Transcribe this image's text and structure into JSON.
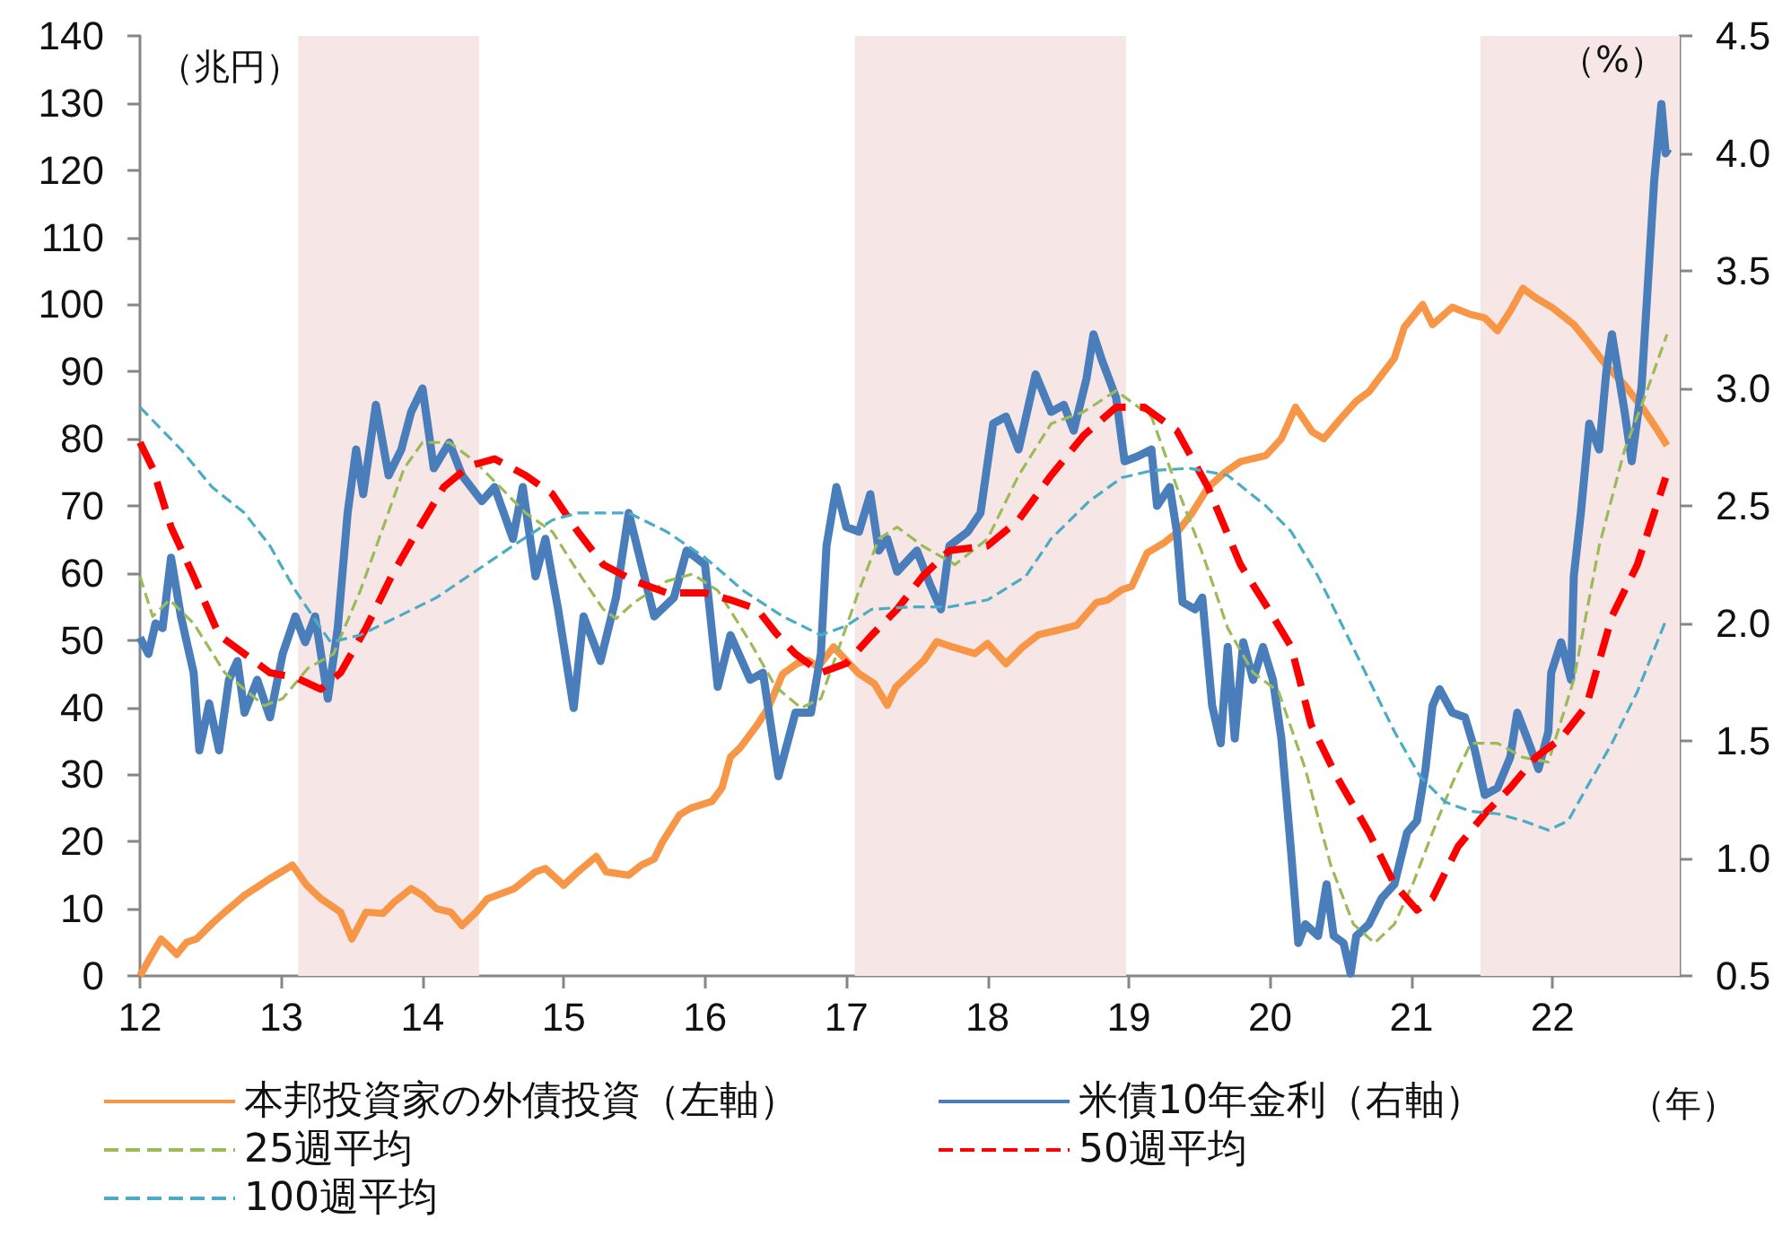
{
  "chart_data": {
    "type": "line",
    "xlabel": "（年）",
    "ylabel": "（兆円）",
    "y2label": "（%）",
    "xlim": [
      12,
      22.9
    ],
    "xticks": [
      12,
      13,
      14,
      15,
      16,
      17,
      18,
      19,
      20,
      21,
      22
    ],
    "ylim": [
      0,
      140
    ],
    "yticks": [
      0,
      10,
      20,
      30,
      40,
      50,
      60,
      70,
      80,
      90,
      100,
      110,
      120,
      130,
      140
    ],
    "y2lim": [
      0.5,
      4.5
    ],
    "y2ticks": [
      0.5,
      {
        "value": 1,
        "label": "1.0"
      },
      1.5,
      {
        "value": 2,
        "label": "2.0"
      },
      2.5,
      {
        "value": 3,
        "label": "3.0"
      },
      3.5,
      {
        "value": 4,
        "label": "4.0"
      },
      4.5
    ],
    "grid": false,
    "legend": "bottom",
    "marker": "none",
    "bands": [
      {
        "axis": "x",
        "from": 13.12,
        "to": 14.4,
        "color": "#f6e6e6"
      },
      {
        "axis": "x",
        "from": 17.06,
        "to": 18.98,
        "color": "#f6e6e6"
      },
      {
        "axis": "x",
        "from": 21.49,
        "to": 22.9,
        "color": "#f6e6e6"
      }
    ],
    "series": [
      {
        "name": "本邦投資家の外債投資（左軸）",
        "color": "#f79646",
        "line_style": "solid",
        "x": [
          12.0,
          12.08,
          12.15,
          12.2,
          12.26,
          12.33,
          12.4,
          12.51,
          12.6,
          12.74,
          12.85,
          12.92,
          13.0,
          13.08,
          13.18,
          13.28,
          13.42,
          13.5,
          13.6,
          13.72,
          13.8,
          13.92,
          14.0,
          14.1,
          14.2,
          14.28,
          14.38,
          14.46,
          14.65,
          14.8,
          14.87,
          15.0,
          15.1,
          15.23,
          15.3,
          15.46,
          15.55,
          15.64,
          15.7,
          15.82,
          15.9,
          16.05,
          16.12,
          16.18,
          16.25,
          16.37,
          16.45,
          16.55,
          16.65,
          16.73,
          16.8,
          16.91,
          17.0,
          17.09,
          17.2,
          17.29,
          17.35,
          17.45,
          17.55,
          17.64,
          17.75,
          17.91,
          18.0,
          18.13,
          18.25,
          18.36,
          18.5,
          18.63,
          18.77,
          18.85,
          18.95,
          19.02,
          19.13,
          19.25,
          19.34,
          19.45,
          19.56,
          19.68,
          19.79,
          19.97,
          20.08,
          20.18,
          20.3,
          20.38,
          20.5,
          20.61,
          20.7,
          20.79,
          20.88,
          20.95,
          21.08,
          21.15,
          21.29,
          21.42,
          21.52,
          21.61,
          21.7,
          21.79,
          21.88,
          22.0,
          22.06,
          22.15,
          22.24,
          22.38,
          22.51,
          22.65,
          22.72,
          22.81
        ],
        "values": [
          0,
          3,
          5.5,
          4.5,
          3.2,
          5,
          5.5,
          7.8,
          9.5,
          12,
          13.5,
          14.5,
          15.5,
          16.5,
          13.5,
          11.5,
          9.5,
          5.5,
          9.5,
          9.3,
          11,
          13,
          12,
          10,
          9.5,
          7.5,
          9.5,
          11.5,
          13,
          15.5,
          16,
          13.5,
          15.5,
          17.8,
          15.5,
          15,
          16.5,
          17.4,
          20,
          24,
          25,
          26,
          28,
          32.6,
          34,
          37.4,
          40,
          45,
          46.5,
          47,
          46,
          49,
          47,
          45,
          43.5,
          40.3,
          43,
          45,
          47,
          49.8,
          49,
          48,
          49.5,
          46.5,
          49,
          50.8,
          51.5,
          52.2,
          55.6,
          56,
          57.5,
          58,
          63,
          64.5,
          66,
          69,
          72.7,
          75,
          76.6,
          77.5,
          80,
          84.7,
          81,
          80,
          83,
          85.6,
          87,
          89.5,
          92,
          96.6,
          100,
          97,
          99.6,
          98.5,
          98,
          96.1,
          99,
          102.4,
          101,
          99.5,
          98.5,
          97,
          94.7,
          90.9,
          88,
          84.2,
          82,
          79
        ]
      },
      {
        "name": "米債10年金利（右軸）",
        "color": "#4a7ebb",
        "line_style": "solid",
        "axis": "y2",
        "x": [
          12.0,
          12.06,
          12.11,
          12.16,
          12.22,
          12.29,
          12.38,
          12.42,
          12.49,
          12.56,
          12.63,
          12.69,
          12.74,
          12.83,
          12.92,
          13.01,
          13.1,
          13.17,
          13.24,
          13.33,
          13.4,
          13.47,
          13.53,
          13.58,
          13.67,
          13.76,
          13.85,
          13.92,
          14.0,
          14.08,
          14.19,
          14.28,
          14.42,
          14.51,
          14.64,
          14.71,
          14.8,
          14.87,
          14.96,
          15.07,
          15.14,
          15.26,
          15.37,
          15.46,
          15.55,
          15.64,
          15.78,
          15.87,
          16.0,
          16.09,
          16.18,
          16.32,
          16.41,
          16.52,
          16.64,
          16.75,
          16.82,
          16.86,
          16.93,
          17.0,
          17.09,
          17.17,
          17.23,
          17.29,
          17.36,
          17.5,
          17.59,
          17.67,
          17.73,
          17.86,
          17.95,
          18.04,
          18.13,
          18.22,
          18.34,
          18.45,
          18.54,
          18.61,
          18.7,
          18.75,
          18.81,
          18.91,
          18.97,
          19.06,
          19.16,
          19.2,
          19.29,
          19.34,
          19.38,
          19.47,
          19.52,
          19.59,
          19.65,
          19.7,
          19.75,
          19.81,
          19.88,
          19.95,
          20.02,
          20.08,
          20.15,
          20.2,
          20.25,
          20.34,
          20.4,
          20.45,
          20.52,
          20.57,
          20.61,
          20.7,
          20.79,
          20.88,
          20.97,
          21.04,
          21.1,
          21.15,
          21.2,
          21.29,
          21.38,
          21.45,
          21.52,
          21.61,
          21.7,
          21.75,
          21.82,
          21.9,
          21.97,
          21.99,
          22.06,
          22.13,
          22.15,
          22.2,
          22.26,
          22.33,
          22.38,
          22.42,
          22.51,
          22.56,
          22.63,
          22.67,
          22.72,
          22.77,
          22.8,
          22.82
        ],
        "values": [
          1.94,
          1.87,
          2.0,
          1.98,
          2.28,
          2.03,
          1.79,
          1.46,
          1.66,
          1.46,
          1.76,
          1.84,
          1.62,
          1.76,
          1.6,
          1.87,
          2.03,
          1.92,
          2.03,
          1.68,
          1.98,
          2.47,
          2.74,
          2.55,
          2.93,
          2.63,
          2.74,
          2.9,
          3.0,
          2.66,
          2.77,
          2.63,
          2.52,
          2.58,
          2.36,
          2.58,
          2.2,
          2.36,
          2.06,
          1.64,
          2.03,
          1.84,
          2.11,
          2.47,
          2.25,
          2.03,
          2.11,
          2.31,
          2.25,
          1.73,
          1.95,
          1.76,
          1.79,
          1.35,
          1.62,
          1.62,
          1.87,
          2.33,
          2.58,
          2.41,
          2.39,
          2.55,
          2.31,
          2.36,
          2.22,
          2.31,
          2.17,
          2.06,
          2.33,
          2.39,
          2.47,
          2.85,
          2.88,
          2.74,
          3.06,
          2.9,
          2.93,
          2.82,
          3.04,
          3.23,
          3.12,
          2.96,
          2.69,
          2.71,
          2.74,
          2.5,
          2.58,
          2.39,
          2.09,
          2.06,
          2.11,
          1.65,
          1.49,
          1.9,
          1.51,
          1.92,
          1.76,
          1.9,
          1.76,
          1.51,
          1.02,
          0.64,
          0.72,
          0.67,
          0.89,
          0.67,
          0.64,
          0.51,
          0.67,
          0.72,
          0.83,
          0.89,
          1.11,
          1.16,
          1.38,
          1.65,
          1.72,
          1.62,
          1.6,
          1.46,
          1.27,
          1.3,
          1.43,
          1.62,
          1.51,
          1.38,
          1.54,
          1.79,
          1.92,
          1.76,
          2.2,
          2.47,
          2.85,
          2.74,
          3.07,
          3.23,
          2.9,
          2.69,
          3.01,
          3.4,
          3.89,
          4.21,
          4.0,
          4.02
        ]
      },
      {
        "name": "25週平均",
        "color": "#9bbb59",
        "line_style": "dashed",
        "axis": "y2",
        "x": [
          12.0,
          12.09,
          12.21,
          12.38,
          12.6,
          12.88,
          13.01,
          13.19,
          13.37,
          13.56,
          13.74,
          13.87,
          14.0,
          14.19,
          14.37,
          14.55,
          14.73,
          14.92,
          15.1,
          15.28,
          15.37,
          15.5,
          15.73,
          15.91,
          16.09,
          16.32,
          16.5,
          16.68,
          16.82,
          16.95,
          17.09,
          17.23,
          17.36,
          17.54,
          17.77,
          18.0,
          18.22,
          18.45,
          18.68,
          18.91,
          19.16,
          19.34,
          19.52,
          19.7,
          19.88,
          20.06,
          20.25,
          20.43,
          20.59,
          20.74,
          20.88,
          21.01,
          21.15,
          21.29,
          21.42,
          21.61,
          21.79,
          21.97,
          22.15,
          22.33,
          22.51,
          22.65,
          22.81
        ],
        "values": [
          2.2,
          2.03,
          2.1,
          2.0,
          1.79,
          1.65,
          1.68,
          1.81,
          1.87,
          2.14,
          2.44,
          2.66,
          2.77,
          2.77,
          2.69,
          2.58,
          2.47,
          2.39,
          2.22,
          2.06,
          2.02,
          2.09,
          2.18,
          2.21,
          2.14,
          1.92,
          1.73,
          1.64,
          1.68,
          1.9,
          2.14,
          2.36,
          2.41,
          2.33,
          2.25,
          2.36,
          2.63,
          2.85,
          2.9,
          2.99,
          2.88,
          2.58,
          2.3,
          1.98,
          1.79,
          1.71,
          1.38,
          0.97,
          0.72,
          0.64,
          0.72,
          0.89,
          1.11,
          1.32,
          1.49,
          1.49,
          1.43,
          1.41,
          1.76,
          2.33,
          2.74,
          2.96,
          3.23
        ]
      },
      {
        "name": "50週平均",
        "color": "#ff0000",
        "line_style": "dashed",
        "axis": "y2",
        "x": [
          12.0,
          12.09,
          12.22,
          12.38,
          12.56,
          12.74,
          12.92,
          13.1,
          13.28,
          13.42,
          13.6,
          13.78,
          13.96,
          14.15,
          14.33,
          14.51,
          14.73,
          14.92,
          15.1,
          15.28,
          15.5,
          15.73,
          16.0,
          16.18,
          16.37,
          16.5,
          16.64,
          16.82,
          17.0,
          17.18,
          17.36,
          17.54,
          17.73,
          18.0,
          18.22,
          18.45,
          18.68,
          18.91,
          19.11,
          19.34,
          19.56,
          19.79,
          20.02,
          20.15,
          20.29,
          20.47,
          20.7,
          20.88,
          21.04,
          21.15,
          21.33,
          21.52,
          21.7,
          21.88,
          22.06,
          22.24,
          22.42,
          22.6,
          22.8
        ],
        "values": [
          2.77,
          2.66,
          2.41,
          2.2,
          1.95,
          1.87,
          1.79,
          1.77,
          1.72,
          1.79,
          1.98,
          2.2,
          2.39,
          2.58,
          2.67,
          2.7,
          2.63,
          2.55,
          2.39,
          2.25,
          2.18,
          2.13,
          2.13,
          2.1,
          2.06,
          1.96,
          1.87,
          1.79,
          1.83,
          1.95,
          2.06,
          2.2,
          2.31,
          2.33,
          2.44,
          2.63,
          2.8,
          2.92,
          2.92,
          2.82,
          2.58,
          2.25,
          2.03,
          1.9,
          1.57,
          1.35,
          1.11,
          0.89,
          0.78,
          0.83,
          1.05,
          1.19,
          1.3,
          1.43,
          1.51,
          1.65,
          2.03,
          2.25,
          2.62
        ]
      },
      {
        "name": "100週平均",
        "color": "#4bacc6",
        "line_style": "dashed",
        "axis": "y2",
        "x": [
          12.0,
          12.29,
          12.51,
          12.74,
          12.92,
          13.1,
          13.28,
          13.35,
          13.56,
          13.83,
          14.1,
          14.37,
          14.64,
          14.92,
          15.1,
          15.32,
          15.46,
          15.73,
          16.0,
          16.27,
          16.55,
          16.82,
          17.0,
          17.18,
          17.45,
          17.73,
          18.0,
          18.27,
          18.45,
          18.72,
          18.95,
          19.16,
          19.43,
          19.7,
          19.97,
          20.15,
          20.34,
          20.52,
          20.7,
          20.88,
          21.06,
          21.24,
          21.42,
          21.61,
          21.79,
          21.97,
          22.11,
          22.24,
          22.42,
          22.6,
          22.8
        ],
        "values": [
          2.92,
          2.74,
          2.58,
          2.47,
          2.33,
          2.14,
          1.98,
          1.92,
          1.95,
          2.03,
          2.11,
          2.22,
          2.33,
          2.44,
          2.47,
          2.47,
          2.47,
          2.39,
          2.28,
          2.14,
          2.03,
          1.95,
          1.99,
          2.06,
          2.07,
          2.07,
          2.1,
          2.2,
          2.36,
          2.52,
          2.62,
          2.65,
          2.66,
          2.63,
          2.5,
          2.39,
          2.2,
          1.98,
          1.76,
          1.54,
          1.35,
          1.24,
          1.2,
          1.19,
          1.16,
          1.12,
          1.16,
          1.3,
          1.49,
          1.71,
          2.01
        ]
      }
    ]
  }
}
